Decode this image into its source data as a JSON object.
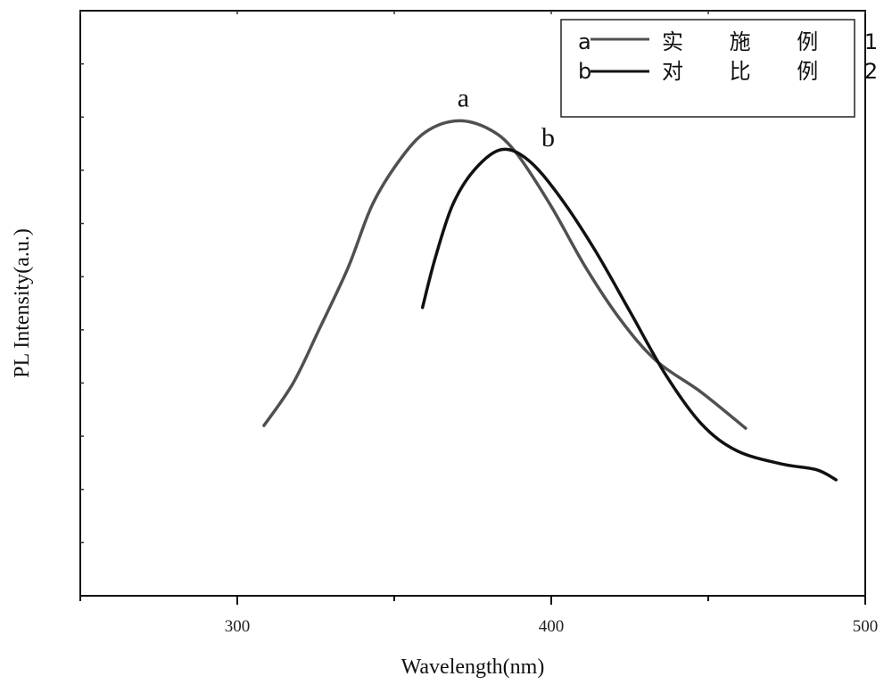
{
  "chart_data": {
    "type": "line",
    "title": "",
    "xlabel": "Wavelength(nm)",
    "ylabel": "PL Intensity(a.u.)",
    "xlim": [
      250,
      500
    ],
    "ylim": [
      0,
      11
    ],
    "xticks": [
      300,
      400,
      500
    ],
    "xtick_labels": [
      "300",
      "400",
      "500"
    ],
    "y_minor_ticks": [
      1,
      2,
      3,
      4,
      5,
      6,
      7,
      8,
      9,
      10
    ],
    "grid": false,
    "legend_position": "top-right",
    "series": [
      {
        "name": "实 施 例 1",
        "marker_label": "a",
        "color": "#505050",
        "x": [
          308.5,
          317.8,
          326,
          335.3,
          343,
          351.7,
          360,
          370,
          380,
          388.4,
          399.7,
          411,
          422.3,
          433.6,
          447.7,
          461.9
        ],
        "y": [
          3.2,
          4.0,
          5.0,
          6.17,
          7.35,
          8.19,
          8.72,
          8.93,
          8.78,
          8.36,
          7.35,
          6.17,
          5.17,
          4.41,
          3.83,
          3.15
        ]
      },
      {
        "name": "对 比 例 2",
        "marker_label": "b",
        "color": "#111111",
        "x": [
          359,
          363,
          368.6,
          375.7,
          384.2,
          392.7,
          402.5,
          413.8,
          425.1,
          436.4,
          447.7,
          459,
          473.2,
          484.5,
          490.7
        ],
        "y": [
          5.42,
          6.34,
          7.35,
          8.02,
          8.39,
          8.19,
          7.52,
          6.51,
          5.34,
          4.16,
          3.24,
          2.73,
          2.48,
          2.37,
          2.18
        ]
      }
    ],
    "annotations": [
      {
        "text": "a",
        "x": 372,
        "y": 9.2
      },
      {
        "text": "b",
        "x": 399,
        "y": 8.45
      }
    ]
  }
}
